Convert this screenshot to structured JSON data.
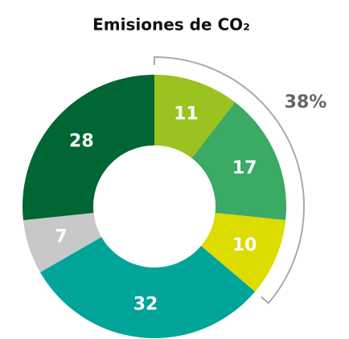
{
  "chart_data": {
    "type": "donut",
    "title": "Emisiones de CO₂",
    "categories": [
      null,
      null,
      null,
      null,
      null,
      null
    ],
    "values": [
      11,
      17,
      10,
      32,
      7,
      28
    ],
    "colors": [
      "#9bc31f",
      "#3aaa64",
      "#dcdc00",
      "#00a499",
      "#c8c8c8",
      "#006633"
    ],
    "annotation": "38%"
  }
}
